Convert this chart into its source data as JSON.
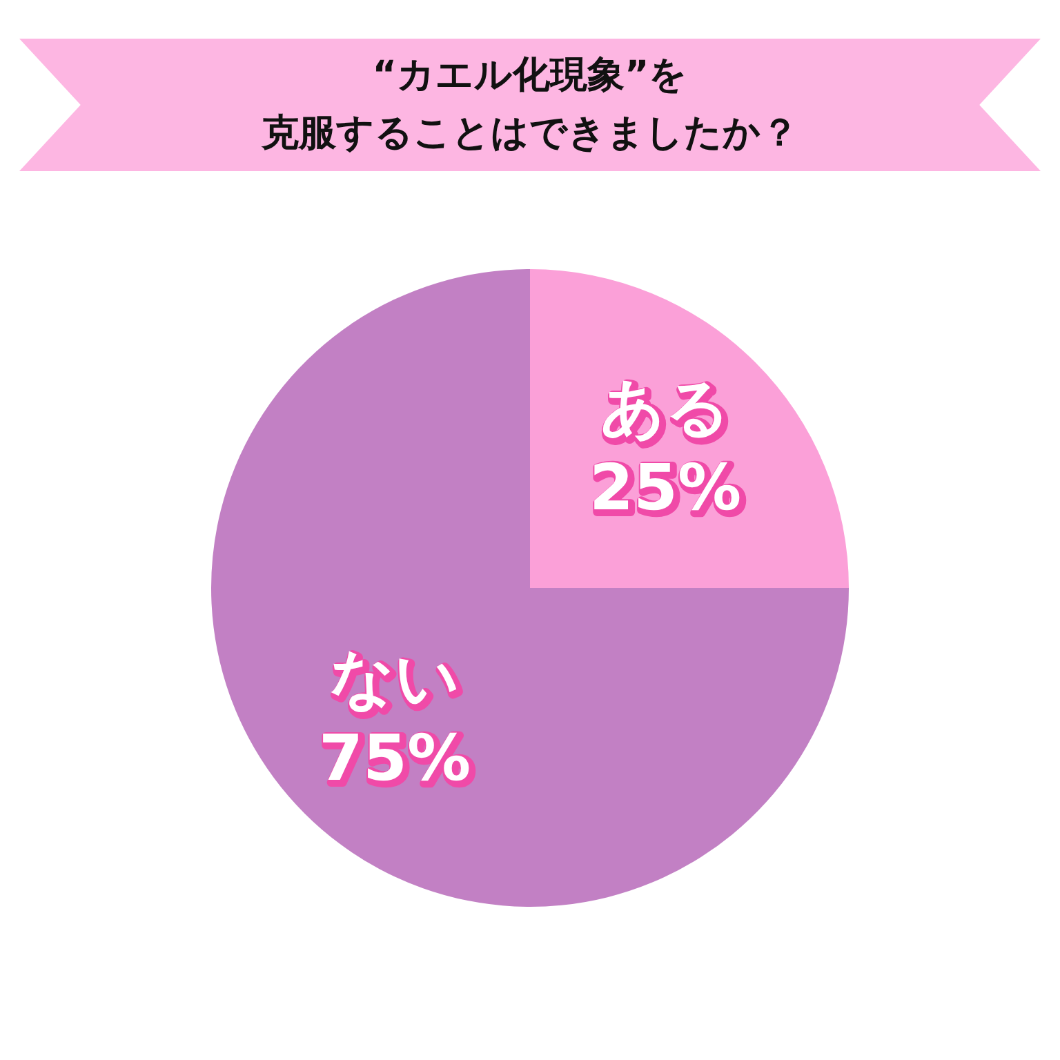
{
  "chart_data": {
    "type": "pie",
    "title": "“カエル化現象”を",
    "subtitle": "克服することはできましたか？",
    "categories": [
      "ある",
      "ない"
    ],
    "values": [
      25,
      75
    ],
    "colors": [
      "#fba0d8",
      "#c280c4"
    ],
    "value_labels": [
      "25%",
      "75%"
    ],
    "legend": false
  }
}
